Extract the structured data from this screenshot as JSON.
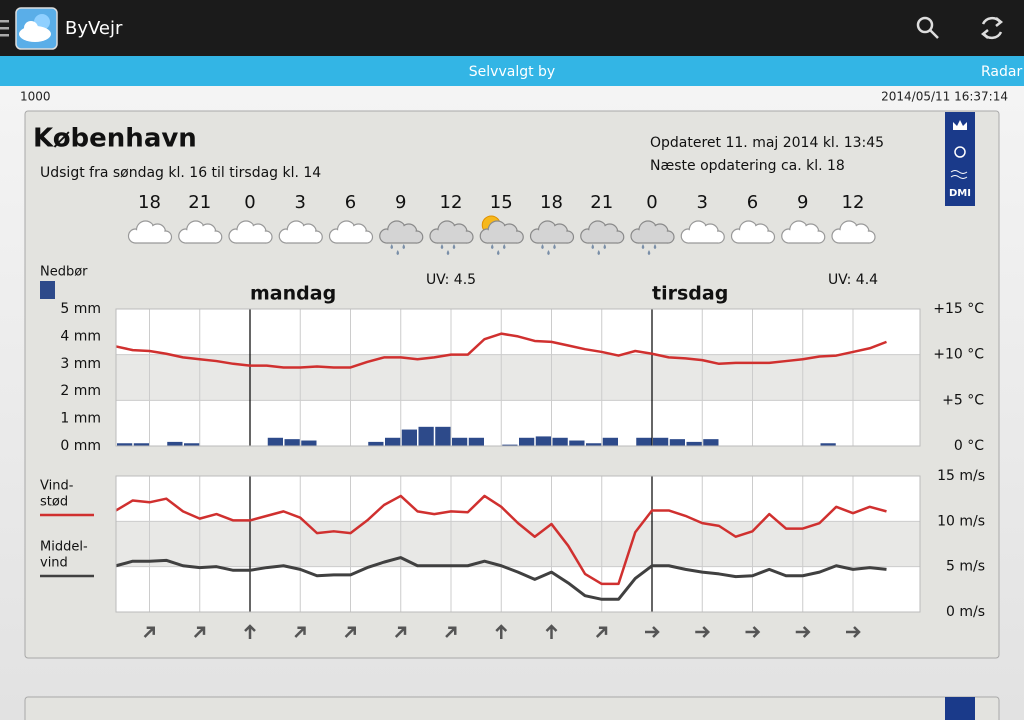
{
  "app_bar": {
    "title": "ByVejr"
  },
  "tabs": {
    "current": "Selvvalgt by",
    "next": "Radar"
  },
  "status": {
    "left": "1000",
    "right": "2014/05/11 16:37:14"
  },
  "forecast": {
    "city": "København",
    "period": "Udsigt fra søndag kl. 16 til tirsdag kl. 14",
    "updated": "Opdateret 11. maj 2014 kl. 13:45",
    "next_update": "Næste opdatering ca. kl. 18",
    "logo_text": "DMI",
    "hours": [
      18,
      21,
      0,
      3,
      6,
      9,
      12,
      15,
      18,
      21,
      0,
      3,
      6,
      9,
      12
    ],
    "icons": [
      "cloud",
      "cloud",
      "cloud",
      "cloud",
      "cloud",
      "rain",
      "rain",
      "sun-rain",
      "rain",
      "rain",
      "rain",
      "cloud",
      "cloud",
      "cloud",
      "cloud"
    ],
    "uv_labels": [
      "UV: 4.5",
      "UV: 4.4"
    ],
    "days": [
      "mandag",
      "tirsdag"
    ],
    "wind_directions": [
      45,
      45,
      0,
      45,
      45,
      45,
      45,
      0,
      0,
      45,
      90,
      90,
      90,
      90,
      90
    ]
  },
  "chart_data": [
    {
      "type": "combo",
      "series": [
        {
          "name": "Nedbør",
          "type": "bar",
          "color": "#2d4a8a",
          "values": [
            0.1,
            0.1,
            0,
            0.15,
            0.1,
            0,
            0,
            0,
            0,
            0.3,
            0.25,
            0.2,
            0,
            0,
            0,
            0.15,
            0.3,
            0.6,
            0.7,
            0.7,
            0.3,
            0.3,
            0,
            0.05,
            0.3,
            0.35,
            0.3,
            0.2,
            0.1,
            0.3,
            0,
            0.3,
            0.3,
            0.25,
            0.15,
            0.25,
            0,
            0,
            0,
            0,
            0,
            0,
            0.1,
            0,
            0,
            0,
            0
          ]
        },
        {
          "type": "line",
          "axis": "y2",
          "color": "#d0302f",
          "values": [
            10.9,
            10.5,
            10.4,
            10.1,
            9.7,
            9.5,
            9.3,
            9.0,
            8.8,
            8.8,
            8.6,
            8.6,
            8.7,
            8.6,
            8.6,
            9.2,
            9.7,
            9.7,
            9.5,
            9.7,
            10.0,
            10.0,
            11.7,
            12.3,
            12.0,
            11.5,
            11.4,
            11.0,
            10.6,
            10.3,
            9.9,
            10.4,
            10.1,
            9.7,
            9.6,
            9.4,
            9.0,
            9.1,
            9.1,
            9.1,
            9.3,
            9.5,
            9.8,
            9.9,
            10.3,
            10.7,
            11.4
          ]
        }
      ],
      "ylim": [
        0,
        5
      ],
      "yticks": [
        {
          "value": 0,
          "label": "0 mm"
        },
        {
          "value": 1,
          "label": "1 mm"
        },
        {
          "value": 2,
          "label": "2 mm"
        },
        {
          "value": 3,
          "label": "3 mm"
        },
        {
          "value": 4,
          "label": "4 mm"
        },
        {
          "value": 5,
          "label": "5 mm"
        }
      ],
      "y2lim": [
        0,
        15
      ],
      "y2ticks": [
        {
          "value": 0,
          "label": "0 °C"
        },
        {
          "value": 5,
          "label": "+5 °C"
        },
        {
          "value": 10,
          "label": "+10 °C"
        },
        {
          "value": 15,
          "label": "+15 °C"
        }
      ]
    },
    {
      "type": "line",
      "series": [
        {
          "name_lines": [
            "Vind-",
            "stød"
          ],
          "color": "#d0302f",
          "values": [
            11.2,
            12.3,
            12.1,
            12.5,
            11.1,
            10.3,
            10.8,
            10.1,
            10.1,
            10.6,
            11.1,
            10.4,
            8.7,
            8.9,
            8.7,
            10.1,
            11.8,
            12.8,
            11.1,
            10.8,
            11.1,
            11.0,
            12.8,
            11.6,
            9.8,
            8.3,
            9.7,
            7.3,
            4.2,
            3.1,
            3.1,
            8.8,
            11.2,
            11.2,
            10.6,
            9.8,
            9.5,
            8.3,
            8.9,
            10.8,
            9.2,
            9.2,
            9.8,
            11.6,
            10.9,
            11.6,
            11.1
          ]
        },
        {
          "name_lines": [
            "Middel-",
            "vind"
          ],
          "color": "#404040",
          "values": [
            5.1,
            5.6,
            5.6,
            5.7,
            5.1,
            4.9,
            5.0,
            4.6,
            4.6,
            4.9,
            5.1,
            4.7,
            4.0,
            4.1,
            4.1,
            4.9,
            5.5,
            6.0,
            5.1,
            5.1,
            5.1,
            5.1,
            5.6,
            5.1,
            4.4,
            3.6,
            4.4,
            3.2,
            1.8,
            1.4,
            1.4,
            3.7,
            5.1,
            5.1,
            4.7,
            4.4,
            4.2,
            3.9,
            4.0,
            4.7,
            4.0,
            4.0,
            4.4,
            5.1,
            4.7,
            4.9,
            4.7
          ]
        }
      ],
      "ylim": [
        0,
        15
      ],
      "yticks": [
        {
          "value": 0,
          "label": "0 m/s"
        },
        {
          "value": 5,
          "label": "5 m/s"
        },
        {
          "value": 10,
          "label": "10 m/s"
        },
        {
          "value": 15,
          "label": "15 m/s"
        }
      ]
    }
  ]
}
